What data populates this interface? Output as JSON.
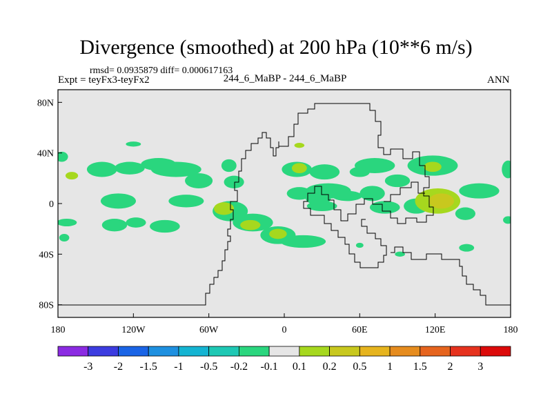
{
  "chart_data": {
    "type": "heatmap",
    "title": "Divergence (smoothed) at 200 hPa (10**6 m/s)",
    "stats_line": "rmsd= 0.0935879 diff= 0.000617163",
    "left_label": "Expt = teyFx3-teyFx2",
    "center_label": "244_6_MaBP - 244_6_MaBP",
    "right_label": "ANN",
    "xlim": [
      -180,
      180
    ],
    "ylim": [
      -90,
      90
    ],
    "x_ticks": [
      {
        "value": -180,
        "label": "180"
      },
      {
        "value": -120,
        "label": "120W"
      },
      {
        "value": -60,
        "label": "60W"
      },
      {
        "value": 0,
        "label": "0"
      },
      {
        "value": 60,
        "label": "60E"
      },
      {
        "value": 120,
        "label": "120E"
      },
      {
        "value": 180,
        "label": "180"
      }
    ],
    "y_ticks": [
      {
        "value": 80,
        "label": "80N"
      },
      {
        "value": 40,
        "label": "40N"
      },
      {
        "value": 0,
        "label": "0"
      },
      {
        "value": -40,
        "label": "40S"
      },
      {
        "value": -80,
        "label": "80S"
      }
    ],
    "background_color": "#e6e6e6",
    "colorbar": {
      "levels": [
        "-3",
        "-2",
        "-1.5",
        "-1",
        "-0.5",
        "-0.2",
        "-0.1",
        "0.1",
        "0.2",
        "0.5",
        "1",
        "1.5",
        "2",
        "3"
      ],
      "colors": [
        "#8b2be2",
        "#3c3ce0",
        "#1a64e6",
        "#1e90e0",
        "#14b4d2",
        "#1ec8b4",
        "#2ad67e",
        "#e6e6e6",
        "#a6d81e",
        "#c8c81e",
        "#e6b41e",
        "#e68c1e",
        "#e6641e",
        "#e6321e",
        "#dc0a0a"
      ]
    },
    "regions": [
      {
        "level": -0.1,
        "lon": -177,
        "lat": 37,
        "rlon": 5,
        "rlat": 4
      },
      {
        "level": -0.1,
        "lon": -120,
        "lat": 47,
        "rlon": 6,
        "rlat": 2
      },
      {
        "level": -0.1,
        "lon": -123,
        "lat": 28,
        "rlon": 12,
        "rlat": 5
      },
      {
        "level": 0.1,
        "lon": -169,
        "lat": 22,
        "rlon": 5,
        "rlat": 3
      },
      {
        "level": -0.1,
        "lon": -145,
        "lat": 27,
        "rlon": 12,
        "rlat": 6
      },
      {
        "level": -0.1,
        "lon": -132,
        "lat": 2,
        "rlon": 14,
        "rlat": 6
      },
      {
        "level": -0.1,
        "lon": -100,
        "lat": 31,
        "rlon": 14,
        "rlat": 5
      },
      {
        "level": -0.1,
        "lon": -86,
        "lat": 27,
        "rlon": 20,
        "rlat": 6
      },
      {
        "level": -0.1,
        "lon": -68,
        "lat": 18,
        "rlon": 11,
        "rlat": 6
      },
      {
        "level": -0.1,
        "lon": -78,
        "lat": 2,
        "rlon": 14,
        "rlat": 5
      },
      {
        "level": -0.1,
        "lon": -44,
        "lat": 30,
        "rlon": 6,
        "rlat": 5
      },
      {
        "level": -0.1,
        "lon": -173,
        "lat": -15,
        "rlon": 8,
        "rlat": 3
      },
      {
        "level": -0.1,
        "lon": -135,
        "lat": -17,
        "rlon": 10,
        "rlat": 5
      },
      {
        "level": -0.1,
        "lon": -118,
        "lat": -15,
        "rlon": 8,
        "rlat": 4
      },
      {
        "level": -0.1,
        "lon": -95,
        "lat": -18,
        "rlon": 12,
        "rlat": 5
      },
      {
        "level": -0.1,
        "lon": -175,
        "lat": -27,
        "rlon": 4,
        "rlat": 3
      },
      {
        "level": -0.1,
        "lon": -40,
        "lat": 17,
        "rlon": 8,
        "rlat": 5
      },
      {
        "level": -0.1,
        "lon": -43,
        "lat": -6,
        "rlon": 14,
        "rlat": 8
      },
      {
        "level": 0.1,
        "lon": -48,
        "lat": -4,
        "rlon": 8,
        "rlat": 5
      },
      {
        "level": -0.1,
        "lon": -25,
        "lat": -15,
        "rlon": 16,
        "rlat": 7
      },
      {
        "level": 0.1,
        "lon": -27,
        "lat": -17,
        "rlon": 8,
        "rlat": 4
      },
      {
        "level": -0.1,
        "lon": -5,
        "lat": -25,
        "rlon": 14,
        "rlat": 7
      },
      {
        "level": 0.1,
        "lon": -5,
        "lat": -24,
        "rlon": 7,
        "rlat": 4
      },
      {
        "level": -0.1,
        "lon": 15,
        "lat": -30,
        "rlon": 18,
        "rlat": 5
      },
      {
        "level": -0.1,
        "lon": 10,
        "lat": 27,
        "rlon": 12,
        "rlat": 6
      },
      {
        "level": 0.1,
        "lon": 12,
        "lat": 28,
        "rlon": 6,
        "rlat": 4
      },
      {
        "level": 0.1,
        "lon": 12,
        "lat": 46,
        "rlon": 4,
        "rlat": 2
      },
      {
        "level": -0.1,
        "lon": 12,
        "lat": 8,
        "rlon": 10,
        "rlat": 5
      },
      {
        "level": -0.1,
        "lon": 32,
        "lat": 25,
        "rlon": 12,
        "rlat": 6
      },
      {
        "level": -0.1,
        "lon": 27,
        "lat": 4,
        "rlon": 10,
        "rlat": 5
      },
      {
        "level": -0.1,
        "lon": 35,
        "lat": 10,
        "rlon": 18,
        "rlat": 6
      },
      {
        "level": -0.1,
        "lon": 30,
        "lat": -2,
        "rlon": 12,
        "rlat": 4
      },
      {
        "level": -0.1,
        "lon": 50,
        "lat": 6,
        "rlon": 12,
        "rlat": 4
      },
      {
        "level": -0.1,
        "lon": 60,
        "lat": 25,
        "rlon": 8,
        "rlat": 4
      },
      {
        "level": -0.1,
        "lon": 72,
        "lat": 30,
        "rlon": 16,
        "rlat": 6
      },
      {
        "level": -0.1,
        "lon": 70,
        "lat": 8,
        "rlon": 10,
        "rlat": 6
      },
      {
        "level": -0.1,
        "lon": 80,
        "lat": -3,
        "rlon": 12,
        "rlat": 5
      },
      {
        "level": -0.1,
        "lon": 90,
        "lat": 18,
        "rlon": 10,
        "rlat": 5
      },
      {
        "level": -0.1,
        "lon": 105,
        "lat": -2,
        "rlon": 10,
        "rlat": 6
      },
      {
        "level": -0.1,
        "lon": 118,
        "lat": 30,
        "rlon": 20,
        "rlat": 8
      },
      {
        "level": 0.1,
        "lon": 118,
        "lat": 29,
        "rlon": 7,
        "rlat": 4
      },
      {
        "level": 0.1,
        "lon": 122,
        "lat": 2,
        "rlon": 18,
        "rlat": 10
      },
      {
        "level": 0.2,
        "lon": 125,
        "lat": 2,
        "rlon": 10,
        "rlat": 6
      },
      {
        "level": -0.1,
        "lon": 155,
        "lat": 10,
        "rlon": 16,
        "rlat": 6
      },
      {
        "level": -0.1,
        "lon": 144,
        "lat": -8,
        "rlon": 8,
        "rlat": 5
      },
      {
        "level": -0.1,
        "lon": 178,
        "lat": 27,
        "rlon": 5,
        "rlat": 7
      },
      {
        "level": -0.1,
        "lon": 178,
        "lat": -13,
        "rlon": 4,
        "rlat": 3
      },
      {
        "level": -0.1,
        "lon": 145,
        "lat": -35,
        "rlon": 6,
        "rlat": 3
      },
      {
        "level": -0.1,
        "lon": 92,
        "lat": -40,
        "rlon": 4,
        "rlat": 2
      },
      {
        "level": -0.1,
        "lon": 60,
        "lat": -33,
        "rlon": 3,
        "rlat": 2
      }
    ]
  }
}
